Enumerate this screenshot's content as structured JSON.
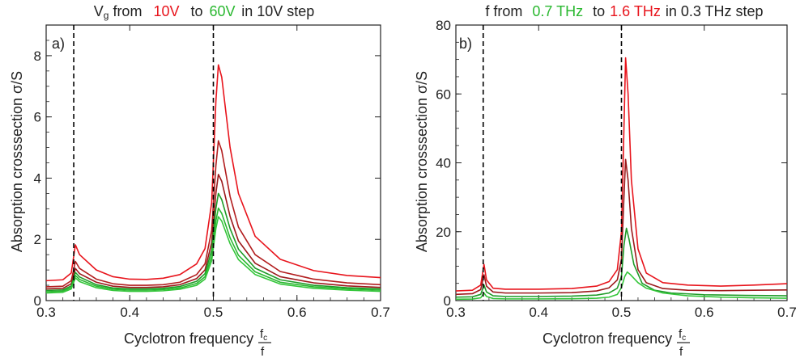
{
  "colors": {
    "red": "#e8141c",
    "green": "#2ab830"
  },
  "panels": [
    {
      "tag": "a)",
      "title": {
        "prefix": "V",
        "sub": "g",
        "from": " from",
        "v1": "10V",
        "to": "to",
        "v2": "60V",
        "rest": "in 10V step"
      }
    },
    {
      "tag": "b)",
      "title": {
        "prefix": "f from",
        "v1": "0.7 THz",
        "to": "to",
        "v2": "1.6 THz",
        "rest": "in 0.3 THz step"
      }
    }
  ],
  "chart_data": [
    {
      "type": "line",
      "title": "Vg from 10V to 60V in 10V step",
      "xlabel": "Cyclotron frequency fc/f",
      "ylabel": "Absorption crosssection σ/S",
      "xlim": [
        0.3,
        0.7
      ],
      "ylim": [
        0,
        9
      ],
      "xticks": [
        0.3,
        0.4,
        0.5,
        0.6,
        0.7
      ],
      "yticks": [
        0,
        2,
        4,
        6,
        8
      ],
      "vlines": [
        0.333,
        0.5
      ],
      "series": [
        {
          "color": "#e8141c",
          "values": [
            [
              0.3,
              0.65
            ],
            [
              0.32,
              0.68
            ],
            [
              0.33,
              0.9
            ],
            [
              0.335,
              1.82
            ],
            [
              0.34,
              1.5
            ],
            [
              0.36,
              1.0
            ],
            [
              0.38,
              0.78
            ],
            [
              0.4,
              0.7
            ],
            [
              0.42,
              0.69
            ],
            [
              0.44,
              0.73
            ],
            [
              0.46,
              0.85
            ],
            [
              0.48,
              1.2
            ],
            [
              0.49,
              1.7
            ],
            [
              0.498,
              3.2
            ],
            [
              0.503,
              6.5
            ],
            [
              0.506,
              7.7
            ],
            [
              0.51,
              7.3
            ],
            [
              0.52,
              5.0
            ],
            [
              0.53,
              3.5
            ],
            [
              0.55,
              2.1
            ],
            [
              0.58,
              1.35
            ],
            [
              0.62,
              0.98
            ],
            [
              0.66,
              0.82
            ],
            [
              0.7,
              0.75
            ]
          ]
        },
        {
          "color": "#b21d1e",
          "values": [
            [
              0.3,
              0.45
            ],
            [
              0.32,
              0.47
            ],
            [
              0.33,
              0.65
            ],
            [
              0.335,
              1.28
            ],
            [
              0.34,
              1.05
            ],
            [
              0.36,
              0.7
            ],
            [
              0.38,
              0.55
            ],
            [
              0.4,
              0.5
            ],
            [
              0.42,
              0.5
            ],
            [
              0.44,
              0.52
            ],
            [
              0.46,
              0.6
            ],
            [
              0.48,
              0.85
            ],
            [
              0.49,
              1.2
            ],
            [
              0.498,
              2.3
            ],
            [
              0.503,
              4.4
            ],
            [
              0.506,
              5.22
            ],
            [
              0.51,
              4.9
            ],
            [
              0.52,
              3.4
            ],
            [
              0.53,
              2.4
            ],
            [
              0.55,
              1.5
            ],
            [
              0.58,
              0.95
            ],
            [
              0.62,
              0.7
            ],
            [
              0.66,
              0.58
            ],
            [
              0.7,
              0.52
            ]
          ]
        },
        {
          "color": "#9c1a1c",
          "values": [
            [
              0.3,
              0.38
            ],
            [
              0.32,
              0.4
            ],
            [
              0.33,
              0.55
            ],
            [
              0.335,
              1.05
            ],
            [
              0.34,
              0.88
            ],
            [
              0.36,
              0.6
            ],
            [
              0.38,
              0.47
            ],
            [
              0.4,
              0.43
            ],
            [
              0.42,
              0.43
            ],
            [
              0.44,
              0.45
            ],
            [
              0.46,
              0.52
            ],
            [
              0.48,
              0.72
            ],
            [
              0.49,
              1.0
            ],
            [
              0.498,
              1.9
            ],
            [
              0.503,
              3.5
            ],
            [
              0.506,
              4.12
            ],
            [
              0.51,
              3.9
            ],
            [
              0.52,
              2.75
            ],
            [
              0.53,
              1.95
            ],
            [
              0.55,
              1.22
            ],
            [
              0.58,
              0.78
            ],
            [
              0.62,
              0.58
            ],
            [
              0.66,
              0.48
            ],
            [
              0.7,
              0.43
            ]
          ]
        },
        {
          "color": "#1e9b28",
          "values": [
            [
              0.3,
              0.33
            ],
            [
              0.32,
              0.35
            ],
            [
              0.33,
              0.48
            ],
            [
              0.335,
              0.92
            ],
            [
              0.34,
              0.77
            ],
            [
              0.36,
              0.52
            ],
            [
              0.38,
              0.41
            ],
            [
              0.4,
              0.38
            ],
            [
              0.42,
              0.38
            ],
            [
              0.44,
              0.4
            ],
            [
              0.46,
              0.46
            ],
            [
              0.48,
              0.63
            ],
            [
              0.49,
              0.88
            ],
            [
              0.498,
              1.65
            ],
            [
              0.503,
              3.0
            ],
            [
              0.506,
              3.5
            ],
            [
              0.51,
              3.3
            ],
            [
              0.52,
              2.35
            ],
            [
              0.53,
              1.68
            ],
            [
              0.55,
              1.06
            ],
            [
              0.58,
              0.68
            ],
            [
              0.62,
              0.5
            ],
            [
              0.66,
              0.42
            ],
            [
              0.7,
              0.38
            ]
          ]
        },
        {
          "color": "#2ab830",
          "values": [
            [
              0.3,
              0.29
            ],
            [
              0.32,
              0.31
            ],
            [
              0.33,
              0.43
            ],
            [
              0.335,
              0.82
            ],
            [
              0.34,
              0.69
            ],
            [
              0.36,
              0.47
            ],
            [
              0.38,
              0.37
            ],
            [
              0.4,
              0.34
            ],
            [
              0.42,
              0.34
            ],
            [
              0.44,
              0.36
            ],
            [
              0.46,
              0.41
            ],
            [
              0.48,
              0.56
            ],
            [
              0.49,
              0.78
            ],
            [
              0.498,
              1.45
            ],
            [
              0.503,
              2.6
            ],
            [
              0.506,
              3.02
            ],
            [
              0.51,
              2.85
            ],
            [
              0.52,
              2.05
            ],
            [
              0.53,
              1.48
            ],
            [
              0.55,
              0.94
            ],
            [
              0.58,
              0.6
            ],
            [
              0.62,
              0.45
            ],
            [
              0.66,
              0.38
            ],
            [
              0.7,
              0.34
            ]
          ]
        },
        {
          "color": "#34c63a",
          "values": [
            [
              0.3,
              0.25
            ],
            [
              0.32,
              0.27
            ],
            [
              0.33,
              0.38
            ],
            [
              0.335,
              0.74
            ],
            [
              0.34,
              0.62
            ],
            [
              0.36,
              0.42
            ],
            [
              0.38,
              0.33
            ],
            [
              0.4,
              0.3
            ],
            [
              0.42,
              0.3
            ],
            [
              0.44,
              0.32
            ],
            [
              0.46,
              0.37
            ],
            [
              0.48,
              0.5
            ],
            [
              0.49,
              0.7
            ],
            [
              0.498,
              1.3
            ],
            [
              0.503,
              2.35
            ],
            [
              0.506,
              2.74
            ],
            [
              0.51,
              2.6
            ],
            [
              0.52,
              1.86
            ],
            [
              0.53,
              1.34
            ],
            [
              0.55,
              0.85
            ],
            [
              0.58,
              0.54
            ],
            [
              0.62,
              0.4
            ],
            [
              0.66,
              0.34
            ],
            [
              0.7,
              0.3
            ]
          ]
        }
      ]
    },
    {
      "type": "line",
      "title": "f from 0.7 THz to 1.6 THz in 0.3 THz step",
      "xlabel": "Cyclotron frequency fc/f",
      "ylabel": "Absorption crosssection σ/S",
      "xlim": [
        0.3,
        0.7
      ],
      "ylim": [
        0,
        80
      ],
      "xticks": [
        0.3,
        0.4,
        0.5,
        0.6,
        0.7
      ],
      "yticks": [
        0,
        20,
        40,
        60,
        80
      ],
      "vlines": [
        0.333,
        0.5
      ],
      "series": [
        {
          "color": "#e8141c",
          "values": [
            [
              0.3,
              2.8
            ],
            [
              0.32,
              3.0
            ],
            [
              0.33,
              4.5
            ],
            [
              0.334,
              10.5
            ],
            [
              0.337,
              6.0
            ],
            [
              0.345,
              3.6
            ],
            [
              0.36,
              3.3
            ],
            [
              0.4,
              3.3
            ],
            [
              0.44,
              3.5
            ],
            [
              0.47,
              4.2
            ],
            [
              0.485,
              5.5
            ],
            [
              0.495,
              9.0
            ],
            [
              0.5,
              20.0
            ],
            [
              0.503,
              50.0
            ],
            [
              0.505,
              70.5
            ],
            [
              0.508,
              60.0
            ],
            [
              0.512,
              35.0
            ],
            [
              0.52,
              15.0
            ],
            [
              0.53,
              8.0
            ],
            [
              0.55,
              5.2
            ],
            [
              0.58,
              4.5
            ],
            [
              0.62,
              4.2
            ],
            [
              0.66,
              4.5
            ],
            [
              0.7,
              4.9
            ]
          ]
        },
        {
          "color": "#9c1a1c",
          "values": [
            [
              0.3,
              1.8
            ],
            [
              0.32,
              2.0
            ],
            [
              0.33,
              3.2
            ],
            [
              0.334,
              7.5
            ],
            [
              0.337,
              4.2
            ],
            [
              0.345,
              2.5
            ],
            [
              0.36,
              2.2
            ],
            [
              0.4,
              2.2
            ],
            [
              0.44,
              2.3
            ],
            [
              0.47,
              2.8
            ],
            [
              0.485,
              3.7
            ],
            [
              0.495,
              6.0
            ],
            [
              0.5,
              12.0
            ],
            [
              0.503,
              30.0
            ],
            [
              0.505,
              41.0
            ],
            [
              0.508,
              35.0
            ],
            [
              0.512,
              21.0
            ],
            [
              0.52,
              9.0
            ],
            [
              0.53,
              5.2
            ],
            [
              0.55,
              3.5
            ],
            [
              0.58,
              3.0
            ],
            [
              0.62,
              2.9
            ],
            [
              0.66,
              3.0
            ],
            [
              0.7,
              3.1
            ]
          ]
        },
        {
          "color": "#1e9b28",
          "values": [
            [
              0.3,
              1.0
            ],
            [
              0.32,
              1.1
            ],
            [
              0.33,
              1.8
            ],
            [
              0.334,
              4.5
            ],
            [
              0.337,
              2.5
            ],
            [
              0.345,
              1.4
            ],
            [
              0.36,
              1.2
            ],
            [
              0.4,
              1.2
            ],
            [
              0.44,
              1.3
            ],
            [
              0.47,
              1.6
            ],
            [
              0.485,
              2.2
            ],
            [
              0.495,
              3.6
            ],
            [
              0.5,
              7.0
            ],
            [
              0.503,
              16.0
            ],
            [
              0.506,
              21.0
            ],
            [
              0.509,
              18.0
            ],
            [
              0.515,
              10.5
            ],
            [
              0.525,
              5.0
            ],
            [
              0.54,
              3.0
            ],
            [
              0.56,
              2.2
            ],
            [
              0.6,
              1.7
            ],
            [
              0.65,
              1.5
            ],
            [
              0.7,
              1.4
            ]
          ]
        },
        {
          "color": "#34c63a",
          "values": [
            [
              0.3,
              0.4
            ],
            [
              0.32,
              0.45
            ],
            [
              0.33,
              0.8
            ],
            [
              0.334,
              2.2
            ],
            [
              0.337,
              1.2
            ],
            [
              0.345,
              0.6
            ],
            [
              0.36,
              0.5
            ],
            [
              0.4,
              0.5
            ],
            [
              0.44,
              0.55
            ],
            [
              0.47,
              0.7
            ],
            [
              0.485,
              1.0
            ],
            [
              0.495,
              1.8
            ],
            [
              0.5,
              3.8
            ],
            [
              0.504,
              7.0
            ],
            [
              0.507,
              8.3
            ],
            [
              0.511,
              7.5
            ],
            [
              0.52,
              5.2
            ],
            [
              0.53,
              3.6
            ],
            [
              0.55,
              2.2
            ],
            [
              0.58,
              1.4
            ],
            [
              0.62,
              1.0
            ],
            [
              0.66,
              0.8
            ],
            [
              0.7,
              0.7
            ]
          ]
        }
      ]
    }
  ]
}
